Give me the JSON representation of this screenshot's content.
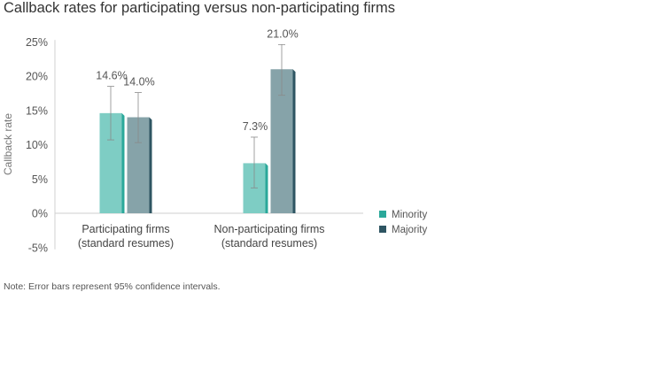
{
  "chart_data": {
    "type": "bar",
    "title": "Callback rates for participating versus non-participating firms",
    "ylabel": "Callback rate",
    "xlabel": "",
    "ylim": [
      -5,
      25
    ],
    "yticks": [
      -5,
      0,
      5,
      10,
      15,
      20,
      25
    ],
    "tick_suffix": "%",
    "categories": [
      [
        "Participating firms",
        "(standard resumes)"
      ],
      [
        "Non-participating firms",
        "(standard resumes)"
      ]
    ],
    "series": [
      {
        "name": "Minority",
        "values": [
          14.6,
          7.3
        ],
        "labels": [
          "14.6%",
          "7.3%"
        ],
        "error_low": [
          10.7,
          3.7
        ],
        "error_high": [
          18.5,
          11.1
        ],
        "color": "#7ecdc4",
        "side_color": "#2aa89a"
      },
      {
        "name": "Majority",
        "values": [
          14.0,
          21.0
        ],
        "labels": [
          "14.0%",
          "21.0%"
        ],
        "error_low": [
          10.3,
          17.2
        ],
        "error_high": [
          17.6,
          24.6
        ],
        "color": "#86a3a9",
        "side_color": "#2e5562"
      }
    ],
    "legend": "right",
    "grid": false,
    "note": "Note: Error bars represent 95% confidence intervals."
  }
}
